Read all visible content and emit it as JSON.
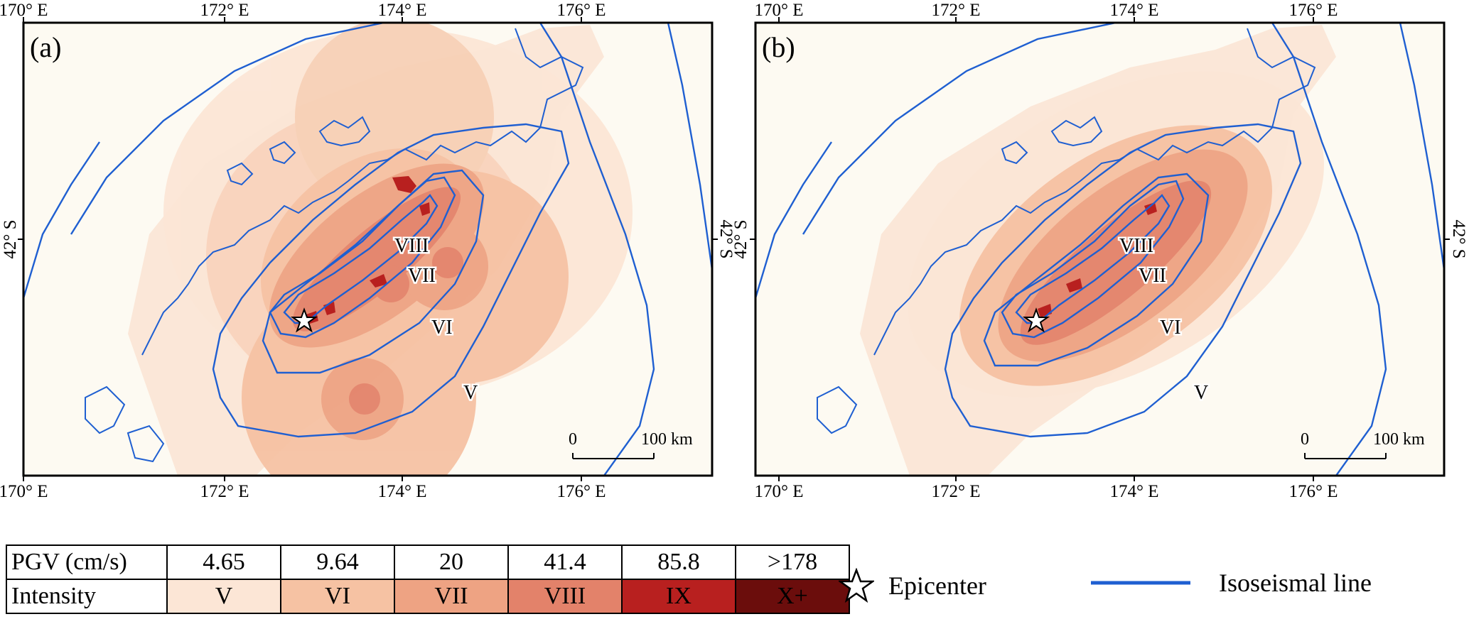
{
  "colors": {
    "ocean": "#fdfaf2",
    "land_base": "#fbe7d8",
    "isoseismal": "#1f5fd1",
    "intensity_V": "#fce6d6",
    "intensity_VI": "#f6c2a3",
    "intensity_VII": "#eea383",
    "intensity_VIII": "#e3826a",
    "intensity_IX": "#b8201f",
    "intensity_X": "#6b0d0c"
  },
  "axes": {
    "lon_ticks": [
      "170° E",
      "172° E",
      "174° E",
      "176° E"
    ],
    "lat_ticks": [
      "42° S"
    ]
  },
  "panels": [
    {
      "label": "(a)",
      "isoseismal_labels": [
        "VIII",
        "VII",
        "VI",
        "V"
      ]
    },
    {
      "label": "(b)",
      "isoseismal_labels": [
        "VIII",
        "VII",
        "VI",
        "V"
      ]
    }
  ],
  "scale_bar": {
    "start": "0",
    "end": "100 km"
  },
  "legend_table": {
    "pgv_header": "PGV (cm/s)",
    "intensity_header": "Intensity",
    "pgv_values": [
      "4.65",
      "9.64",
      "20",
      "41.4",
      "85.8",
      ">178"
    ],
    "intensity_values": [
      "V",
      "VI",
      "VII",
      "VIII",
      "IX",
      "X+"
    ]
  },
  "legend": {
    "epicenter_label": "Epicenter",
    "epicenter_icon": "star-icon",
    "isoseismal_label": "Isoseismal line"
  }
}
